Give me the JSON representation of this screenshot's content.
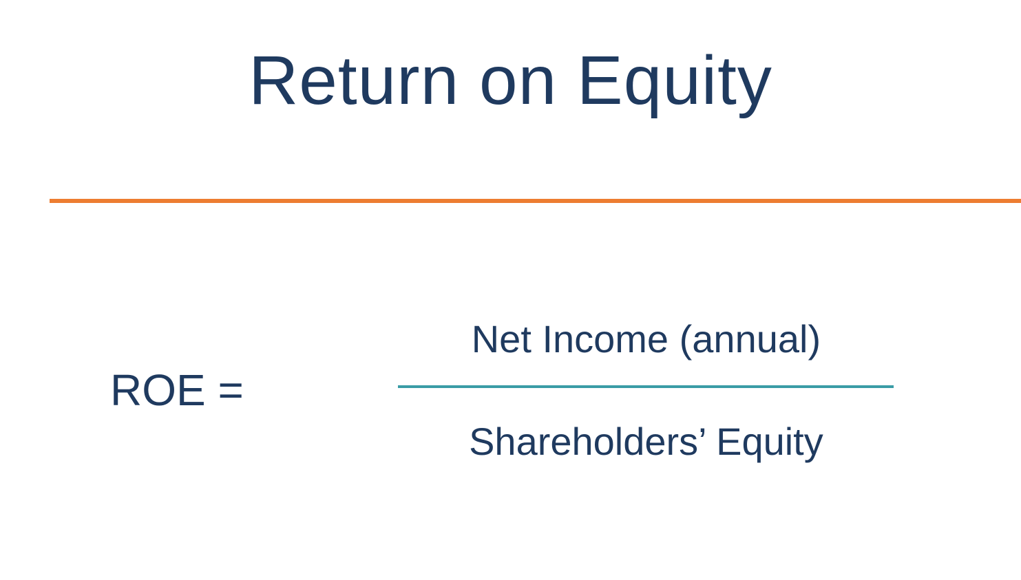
{
  "title": "Return on Equity",
  "formula": {
    "lhs": "ROE =",
    "numerator": "Net Income (annual)",
    "denominator": "Shareholders’ Equity"
  },
  "styling": {
    "text_color": "#1f3a5f",
    "divider_color": "#ed7d31",
    "fraction_line_color": "#3a9ca6",
    "background_color": "#ffffff",
    "title_fontsize": 100,
    "formula_fontsize": 64,
    "fraction_term_fontsize": 56,
    "divider_thickness": 6,
    "fraction_line_thickness": 4,
    "fraction_line_width": 720
  }
}
